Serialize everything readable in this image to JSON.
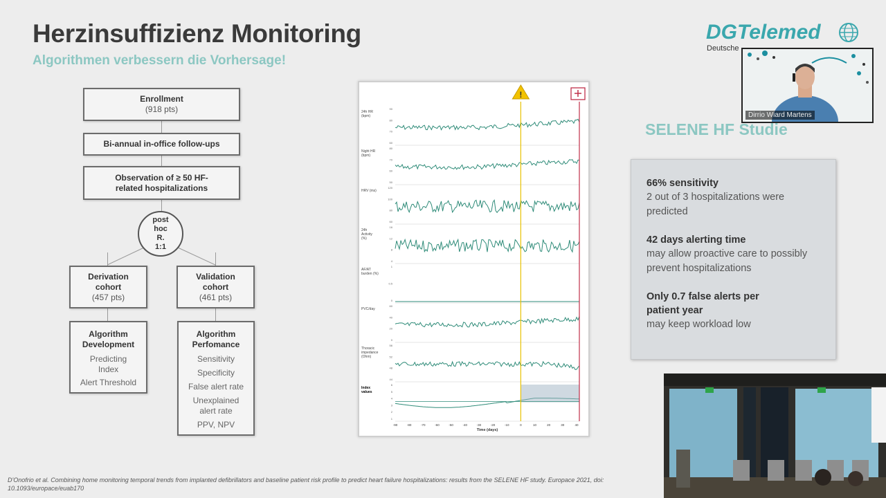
{
  "slide": {
    "title": "Herzinsuffizienz Monitoring",
    "subtitle": "Algorithmen verbessern die Vorhersage!"
  },
  "logo": {
    "name": "DGTelemed",
    "sub": "Deutsche"
  },
  "flowchart": {
    "enrollment": "Enrollment",
    "enrollment_sub": "(918 pts)",
    "followup": "Bi-annual in-office follow-ups",
    "observation": "Observation of ≥ 50 HF-related hospitalizations",
    "posthoc": [
      "post",
      "hoc",
      "R.",
      "1:1"
    ],
    "derivation": "Derivation cohort",
    "derivation_sub": "(457 pts)",
    "validation": "Validation cohort",
    "validation_sub": "(461 pts)",
    "algo_dev_title": "Algorithm Development",
    "algo_dev_items": [
      "Predicting Index",
      "Alert Threshold"
    ],
    "algo_perf_title": "Algorithm Perfomance",
    "algo_perf_items": [
      "Sensitivity",
      "Specificity",
      "False alert rate",
      "Unexplained alert rate",
      "PPV, NPV"
    ]
  },
  "chart_data": {
    "type": "line",
    "xlabel": "Time (days)",
    "x_ticks": [
      -90,
      -80,
      -70,
      -60,
      -50,
      -40,
      -30,
      -20,
      -10,
      0,
      10,
      20,
      30,
      40
    ],
    "xlim": [
      -90,
      42
    ],
    "alert_day": 0,
    "hospitalization_day": 42,
    "panels": [
      {
        "label": "24h HR (bpm)",
        "ticks": [
          "90",
          "80",
          "70",
          "60"
        ]
      },
      {
        "label": "Night HR (bpm)",
        "ticks": [
          "80",
          "70",
          "60",
          "50"
        ]
      },
      {
        "label": "HRV (ms)",
        "ticks": [
          "120",
          "100",
          "80",
          "60"
        ]
      },
      {
        "label": "24h Activity (%)",
        "ticks": [
          "16",
          "12",
          "8",
          "4"
        ]
      },
      {
        "label": "AF/AT burden (%)",
        "ticks": [
          "1",
          "0.5",
          "0"
        ]
      },
      {
        "label": "PVC/day",
        "ticks": [
          "60",
          "40",
          "20",
          "0"
        ]
      },
      {
        "label": "Thoracic impedance (Ohm)",
        "ticks": [
          "56",
          "52",
          "48",
          "44"
        ]
      },
      {
        "label": "Index values",
        "ticks": [
          "6",
          "5",
          "4",
          "3",
          "2",
          "1"
        ]
      }
    ]
  },
  "selene": {
    "title": "SELENE HF Studie",
    "items": [
      {
        "head": "66% sensitivity",
        "text": "2 out of 3 hospitalizations were predicted"
      },
      {
        "head": "42 days alerting time",
        "text": "may allow proactive care to possibly prevent hospitalizations"
      },
      {
        "head": "Only 0.7 false alerts per patient year",
        "text": "may keep workload low"
      }
    ]
  },
  "citation": "D'Onofrio et al. Combining home monitoring temporal trends from implanted defibrillators and baseline patient risk profile to predict heart failure hospitalizations: results from the SELENE HF study. Europace 2021, doi: 10.1093/europace/euab170",
  "webcam": {
    "name": "Dirrio Wiard Martens"
  },
  "colors": {
    "accent": "#8cc7c2",
    "trend": "#2e8b78",
    "alert": "#e8c200",
    "hospital": "#c0304a"
  }
}
